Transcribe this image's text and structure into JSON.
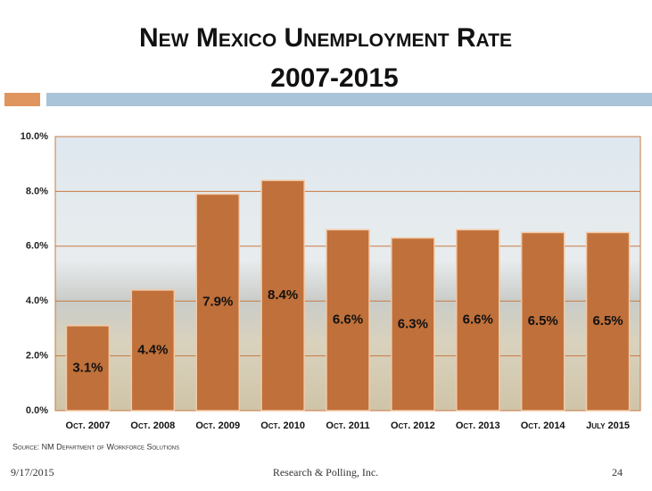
{
  "chart_data": {
    "type": "bar",
    "title": "New Mexico Unemployment Rate",
    "subtitle": "2007-2015",
    "categories": [
      "Oct. 2007",
      "Oct. 2008",
      "Oct. 2009",
      "Oct. 2010",
      "Oct. 2011",
      "Oct. 2012",
      "Oct. 2013",
      "Oct. 2014",
      "July 2015"
    ],
    "values": [
      3.1,
      4.4,
      7.9,
      8.4,
      6.6,
      6.3,
      6.6,
      6.5,
      6.5
    ],
    "value_labels": [
      "3.1%",
      "4.4%",
      "7.9%",
      "8.4%",
      "6.6%",
      "6.3%",
      "6.6%",
      "6.5%",
      "6.5%"
    ],
    "color": "#c0703a",
    "ylim": [
      0,
      10
    ],
    "yticks": [
      {
        "value": 0,
        "label": "0.0%"
      },
      {
        "value": 2,
        "label": "2.0%"
      },
      {
        "value": 4,
        "label": "4.0%"
      },
      {
        "value": 6,
        "label": "6.0%"
      },
      {
        "value": 8,
        "label": "8.0%"
      },
      {
        "value": 10,
        "label": "10.0%"
      }
    ],
    "grid": true,
    "source": "Source: NM Department of Workforce Solutions"
  },
  "footer": {
    "date": "9/17/2015",
    "organization": "Research & Polling, Inc.",
    "page": "24"
  }
}
